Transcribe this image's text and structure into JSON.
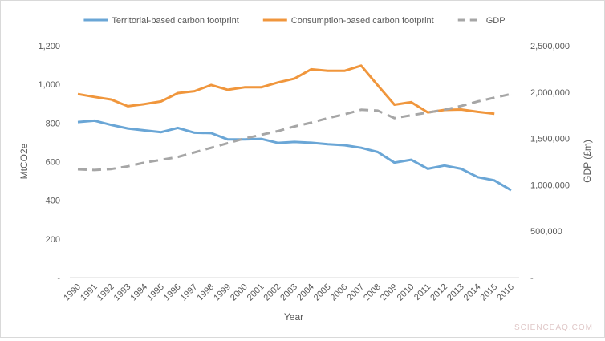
{
  "chart_data": {
    "type": "line",
    "xlabel": "Year",
    "ylabel": "MtCO2e",
    "y2label": "GDP (£m)",
    "ylim": [
      0,
      1200
    ],
    "y2lim": [
      0,
      2500000
    ],
    "yticks": [
      "-",
      "200",
      "400",
      "600",
      "800",
      "1,000",
      "1,200"
    ],
    "y2ticks": [
      "-",
      "500,000",
      "1,000,000",
      "1,500,000",
      "2,000,000",
      "2,500,000"
    ],
    "grid": false,
    "legend_position": "top",
    "x": [
      1990,
      1991,
      1992,
      1993,
      1994,
      1995,
      1996,
      1997,
      1998,
      1999,
      2000,
      2001,
      2002,
      2003,
      2004,
      2005,
      2006,
      2007,
      2008,
      2009,
      2010,
      2011,
      2012,
      2013,
      2014,
      2015,
      2016
    ],
    "series": [
      {
        "name": "Territorial-based carbon footprint",
        "axis": "left",
        "color": "#6aa6d6",
        "style": "solid",
        "values": [
          805,
          812,
          790,
          772,
          762,
          753,
          775,
          750,
          748,
          715,
          715,
          718,
          697,
          702,
          698,
          690,
          685,
          672,
          650,
          595,
          610,
          563,
          580,
          563,
          520,
          503,
          452
        ]
      },
      {
        "name": "Consumption-based carbon footprint",
        "axis": "left",
        "color": "#f0963c",
        "style": "solid",
        "values": [
          950,
          935,
          922,
          887,
          898,
          912,
          955,
          965,
          997,
          972,
          985,
          985,
          1010,
          1030,
          1078,
          1070,
          1070,
          1097,
          995,
          895,
          908,
          855,
          868,
          870,
          858,
          848,
          null
        ]
      },
      {
        "name": "GDP",
        "axis": "right",
        "color": "#a6a6a6",
        "style": "dashed",
        "values": [
          1168000,
          1160000,
          1170000,
          1200000,
          1240000,
          1270000,
          1300000,
          1350000,
          1400000,
          1450000,
          1500000,
          1540000,
          1580000,
          1630000,
          1670000,
          1720000,
          1760000,
          1810000,
          1800000,
          1720000,
          1750000,
          1780000,
          1810000,
          1850000,
          1900000,
          1940000,
          1980000
        ]
      }
    ]
  },
  "watermark": "SCIENCEAQ.COM"
}
